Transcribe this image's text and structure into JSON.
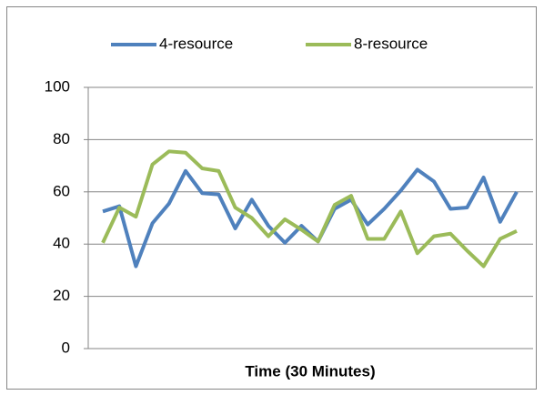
{
  "chart_data": {
    "type": "line",
    "x_label": "Time (30 Minutes)",
    "categories": [
      null,
      null,
      null,
      null,
      null,
      null,
      null,
      null,
      null,
      null,
      null,
      null,
      null,
      null,
      null,
      null,
      null,
      null,
      null,
      null,
      null,
      null,
      null,
      null,
      null,
      null
    ],
    "series": [
      {
        "name": "4-resource",
        "color": "#4f81bd",
        "values": [
          52.5,
          54.5,
          31.5,
          48,
          55.5,
          68,
          59.5,
          59,
          46,
          57,
          47,
          40.5,
          47,
          41,
          53.5,
          57,
          47.5,
          53.5,
          60.5,
          68.5,
          64,
          53.5,
          54,
          65.5,
          48.5,
          60
        ]
      },
      {
        "name": "8-resource",
        "color": "#9bbb59",
        "values": [
          40.5,
          54,
          50.5,
          70.5,
          75.5,
          75,
          69,
          68,
          54,
          50,
          43,
          49.5,
          45.5,
          41,
          55,
          58.5,
          42,
          42,
          52.5,
          36.5,
          43,
          44,
          37.5,
          31.5,
          42,
          45
        ]
      }
    ],
    "ylim": [
      0,
      100
    ],
    "yticks": [
      0,
      20,
      40,
      60,
      80,
      100
    ],
    "grid": true,
    "legend": "top"
  }
}
